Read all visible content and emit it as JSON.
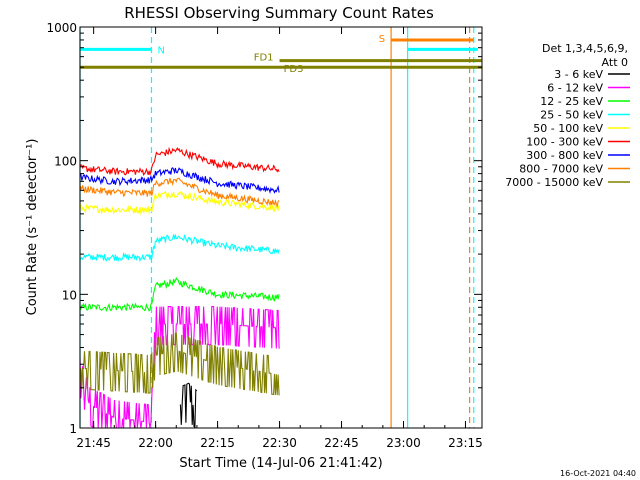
{
  "chart_data": {
    "type": "line",
    "title": "RHESSI Observing Summary Count Rates",
    "xlabel": "Start Time (14-Jul-06 21:41:42)",
    "ylabel": "Count Rate (s⁻¹ detector⁻¹)",
    "x_ticks": [
      "21:45",
      "22:00",
      "22:15",
      "22:30",
      "22:45",
      "23:00",
      "23:15"
    ],
    "x_range": [
      "21:41:42",
      "23:19:00"
    ],
    "y_scale": "log",
    "ylim": [
      1,
      1000
    ],
    "y_ticks": [
      "1",
      "10",
      "100",
      "1000"
    ],
    "legend_header": [
      "Det 1,3,4,5,6,9,",
      "Att 0"
    ],
    "legend_position": "right",
    "date_stamp": "16-Oct-2021 04:40",
    "series": [
      {
        "name": "3 - 6 keV",
        "color": "#000000",
        "x": [
          "22:06",
          "22:08",
          "22:10"
        ],
        "values": [
          1.5,
          1.6,
          1.4
        ]
      },
      {
        "name": "6 - 12 keV",
        "color": "#ff00ff",
        "x": [
          "21:41:42",
          "21:44",
          "21:50",
          "21:59",
          "22:00",
          "22:15",
          "22:30"
        ],
        "values": [
          2.5,
          1.5,
          1.2,
          1.1,
          6.0,
          6.0,
          5.6
        ]
      },
      {
        "name": "12 - 25 keV",
        "color": "#00ff00",
        "x": [
          "21:41:42",
          "21:50",
          "21:59",
          "22:00",
          "22:05",
          "22:15",
          "22:30"
        ],
        "values": [
          8.0,
          8.0,
          8.0,
          11.5,
          12.5,
          10.0,
          9.5
        ]
      },
      {
        "name": "25 - 50 keV",
        "color": "#00ffff",
        "x": [
          "21:41:42",
          "21:50",
          "21:59",
          "22:00",
          "22:05",
          "22:15",
          "22:30"
        ],
        "values": [
          19,
          19,
          19,
          25,
          27,
          23,
          21
        ]
      },
      {
        "name": "50 - 100 keV",
        "color": "#ffff00",
        "x": [
          "21:41:42",
          "21:50",
          "21:59",
          "22:00",
          "22:05",
          "22:15",
          "22:30"
        ],
        "values": [
          44,
          43,
          43,
          55,
          57,
          49,
          44
        ]
      },
      {
        "name": "100 - 300 keV",
        "color": "#ff0000",
        "x": [
          "21:41:42",
          "21:50",
          "21:59",
          "22:00",
          "22:05",
          "22:15",
          "22:30"
        ],
        "values": [
          88,
          83,
          83,
          110,
          120,
          95,
          86
        ]
      },
      {
        "name": "300 - 800 keV",
        "color": "#0000ff",
        "x": [
          "21:41:42",
          "21:50",
          "21:59",
          "22:00",
          "22:05",
          "22:15",
          "22:30"
        ],
        "values": [
          75,
          70,
          72,
          80,
          85,
          68,
          60
        ]
      },
      {
        "name": "800 - 7000 keV",
        "color": "#ff8000",
        "x": [
          "21:41:42",
          "21:50",
          "21:59",
          "22:00",
          "22:05",
          "22:15",
          "22:30"
        ],
        "values": [
          62,
          58,
          57,
          68,
          71,
          55,
          48
        ]
      },
      {
        "name": "7000 - 15000 keV",
        "color": "#808000",
        "x": [
          "21:41:42",
          "21:50",
          "21:59",
          "22:00",
          "22:05",
          "22:15",
          "22:30"
        ],
        "values": [
          2.8,
          2.7,
          2.6,
          3.5,
          3.8,
          3.0,
          2.5
        ]
      }
    ],
    "flag_bars": [
      {
        "label": "N",
        "color": "#00ffff",
        "start": "21:41:42",
        "end": "21:59",
        "level": 680
      },
      {
        "label": "FD1",
        "color": "#808000",
        "start": "22:30",
        "end": "23:19",
        "level": 560
      },
      {
        "label": "FD3",
        "color": "#808000",
        "start": "21:41:42",
        "end": "23:19",
        "level": 500
      },
      {
        "label": "S",
        "color": "#ff8000",
        "start": "22:57",
        "end": "23:17",
        "level": 800
      },
      {
        "label": "",
        "color": "#00ffff",
        "start": "23:01",
        "end": "23:18",
        "level": 680
      }
    ],
    "vlines": [
      {
        "time": "21:41:42",
        "color": "#00ffff",
        "style": "solid"
      },
      {
        "time": "21:59",
        "color": "#00ffff",
        "style": "dashed"
      },
      {
        "time": "22:57",
        "color": "#ff8000",
        "style": "solid"
      },
      {
        "time": "23:01",
        "color": "#00ffff",
        "style": "solid"
      },
      {
        "time": "23:16",
        "color": "#ff8000",
        "style": "dashed"
      },
      {
        "time": "23:17",
        "color": "#00ffff",
        "style": "dashed"
      }
    ]
  }
}
